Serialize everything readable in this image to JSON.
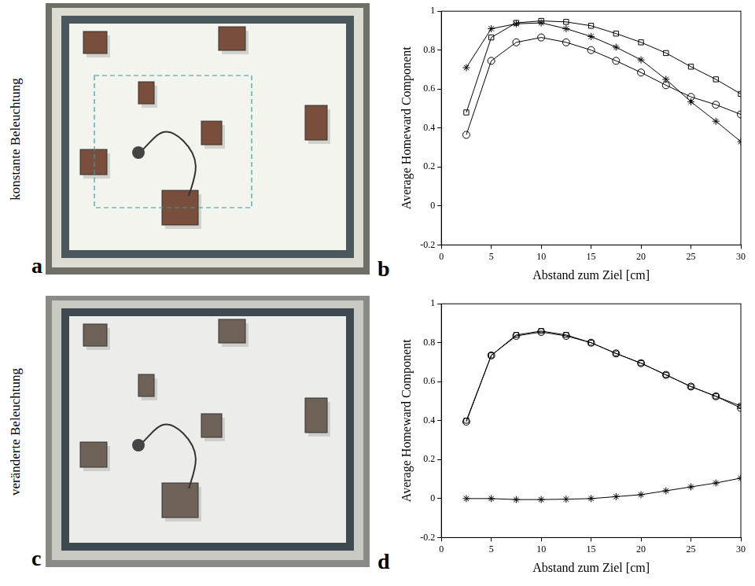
{
  "rows": [
    {
      "label": "konstante Beleuchtung",
      "photo_panel": "a"
    },
    {
      "label": "veränderte Beleuchtung",
      "photo_panel": "c"
    }
  ],
  "chart_data": [
    {
      "panel": "b",
      "type": "line",
      "x_label": "Abstand zum Ziel [cm]",
      "y_label": "Average Homeward Component",
      "x": [
        2.5,
        5,
        7.5,
        10,
        12.5,
        15,
        17.5,
        20,
        22.5,
        25,
        27.5,
        30
      ],
      "series": [
        {
          "color": "#000000",
          "marker": "square",
          "line_style": "solid",
          "values": [
            0.48,
            0.865,
            0.94,
            0.95,
            0.945,
            0.925,
            0.885,
            0.84,
            0.785,
            0.715,
            0.65,
            0.575
          ]
        },
        {
          "color": "#000000",
          "marker": "circle",
          "line_style": "solid",
          "values": [
            0.365,
            0.745,
            0.84,
            0.865,
            0.84,
            0.8,
            0.745,
            0.685,
            0.62,
            0.56,
            0.52,
            0.47
          ]
        },
        {
          "color": "#000000",
          "marker": "star",
          "line_style": "solid",
          "values": [
            0.71,
            0.91,
            0.935,
            0.94,
            0.91,
            0.87,
            0.815,
            0.75,
            0.65,
            0.535,
            0.435,
            0.33
          ]
        }
      ],
      "xlim": [
        0,
        30
      ],
      "xticks": [
        0,
        5,
        10,
        15,
        20,
        25,
        30
      ],
      "ylim": [
        -0.2,
        1
      ],
      "yticks": [
        -0.2,
        0,
        0.2,
        0.4,
        0.6,
        0.8,
        1
      ],
      "grid": false
    },
    {
      "panel": "d",
      "type": "line",
      "x_label": "Abstand zum Ziel [cm]",
      "y_label": "Average Homeward Component",
      "x": [
        2.5,
        5,
        7.5,
        10,
        12.5,
        15,
        17.5,
        20,
        22.5,
        25,
        27.5,
        30
      ],
      "series": [
        {
          "color": "#000000",
          "marker": "square",
          "line_style": "solid",
          "values": [
            0.4,
            0.735,
            0.84,
            0.86,
            0.84,
            0.8,
            0.745,
            0.695,
            0.635,
            0.575,
            0.525,
            0.475
          ]
        },
        {
          "color": "#000000",
          "marker": "circle",
          "line_style": "solid",
          "values": [
            0.395,
            0.735,
            0.835,
            0.855,
            0.835,
            0.8,
            0.745,
            0.695,
            0.635,
            0.575,
            0.525,
            0.465
          ]
        },
        {
          "color": "#000000",
          "marker": "star",
          "line_style": "solid",
          "values": [
            0.0,
            0.0,
            -0.005,
            -0.005,
            -0.003,
            0.0,
            0.01,
            0.02,
            0.04,
            0.06,
            0.08,
            0.105
          ]
        }
      ],
      "xlim": [
        0,
        30
      ],
      "xticks": [
        0,
        5,
        10,
        15,
        20,
        25,
        30
      ],
      "ylim": [
        -0.2,
        1
      ],
      "yticks": [
        -0.2,
        0,
        0.2,
        0.4,
        0.6,
        0.8,
        1
      ],
      "grid": false
    }
  ]
}
